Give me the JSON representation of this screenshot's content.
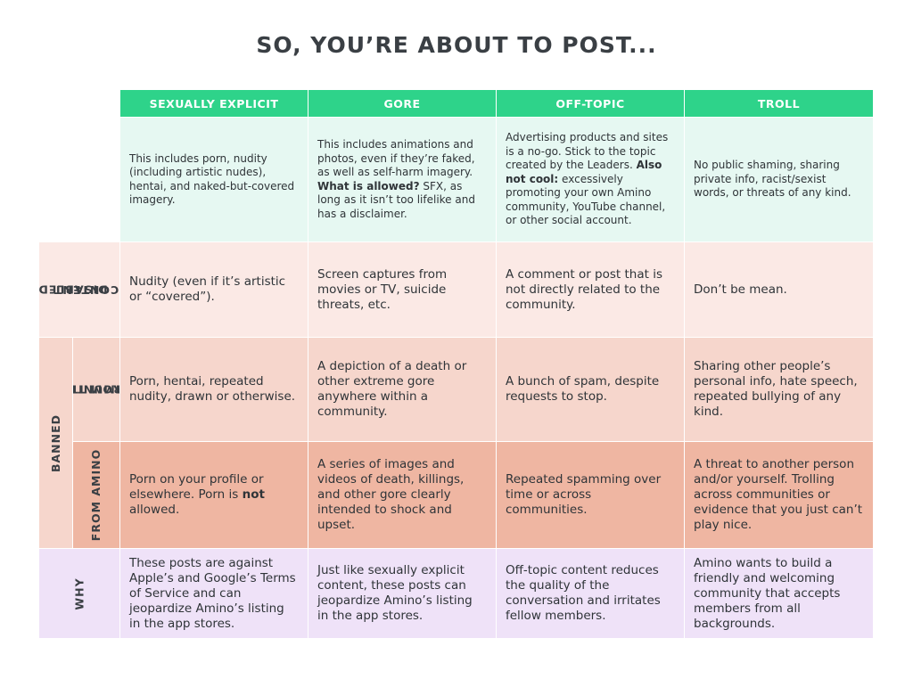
{
  "title": "SO, YOU’RE ABOUT TO POST...",
  "columns": [
    "SEXUALLY EXPLICIT",
    "GORE",
    "OFF-TOPIC",
    "TROLL"
  ],
  "descriptions": [
    {
      "text": "This includes porn, nudity (including artistic nudes), hentai, and naked-but-covered imagery."
    },
    {
      "text1": "This includes animations and photos, even if they’re faked, as well as self-harm imagery.",
      "bold": "What is allowed?",
      "text2": "SFX, as long as it isn’t too lifelike and has a disclaimer."
    },
    {
      "text1": "Advertising products and sites is a no-go. Stick to the topic created by the Leaders.",
      "bold": "Also not cool:",
      "text2": "excessively promoting your own Amino community, YouTube channel, or other social account."
    },
    {
      "text": "No public shaming, sharing private info, racist/sexist words, or threats of any kind."
    }
  ],
  "row_labels": {
    "disabled_line1": "DISABLED",
    "disabled_line2": "CONTENT",
    "banned": "BANNED",
    "ftc_line1": "FROM THAT",
    "ftc_line2": "COMMUNITY",
    "from_amino": "FROM AMINO",
    "why": "WHY"
  },
  "disabled": [
    "Nudity (even if it’s artistic or “covered”).",
    "Screen captures from movies or TV, suicide threats, etc.",
    "A comment or post that is not directly related to the community.",
    "Don’t be mean."
  ],
  "from_that_community": [
    "Porn, hentai, repeated nudity, drawn or otherwise.",
    "A depiction of a death or other extreme gore anywhere within a community.",
    "A bunch of spam, despite requests to stop.",
    "Sharing other people’s personal info, hate speech, repeated bullying of any kind."
  ],
  "from_amino": {
    "sexual_part1": "Porn on your profile or elsewhere. Porn is",
    "sexual_bold": "not",
    "sexual_part2": "allowed.",
    "gore": "A series of images and videos of death, killings, and other gore clearly intended to shock and upset.",
    "offtopic": "Repeated spamming over time or across communities.",
    "troll": "A threat to another person and/or yourself.  Trolling across communities or evidence that you just can’t play nice."
  },
  "why": [
    "These posts are against Apple’s and Google’s Terms of Service and can jeopardize Amino’s listing in the app stores.",
    "Just like sexually explicit content, these posts can jeopardize Amino’s listing in the app stores.",
    "Off-topic content reduces the quality of the conversation and irritates fellow members.",
    "Amino wants to build a friendly and welcoming community that accepts members from all backgrounds."
  ],
  "colors": {
    "header": "#2ed38a",
    "description": "#e6f8f2",
    "disabled": "#fbe9e5",
    "from_that_community": "#f6d6cc",
    "from_amino": "#efb6a2",
    "why": "#efe2f8"
  }
}
